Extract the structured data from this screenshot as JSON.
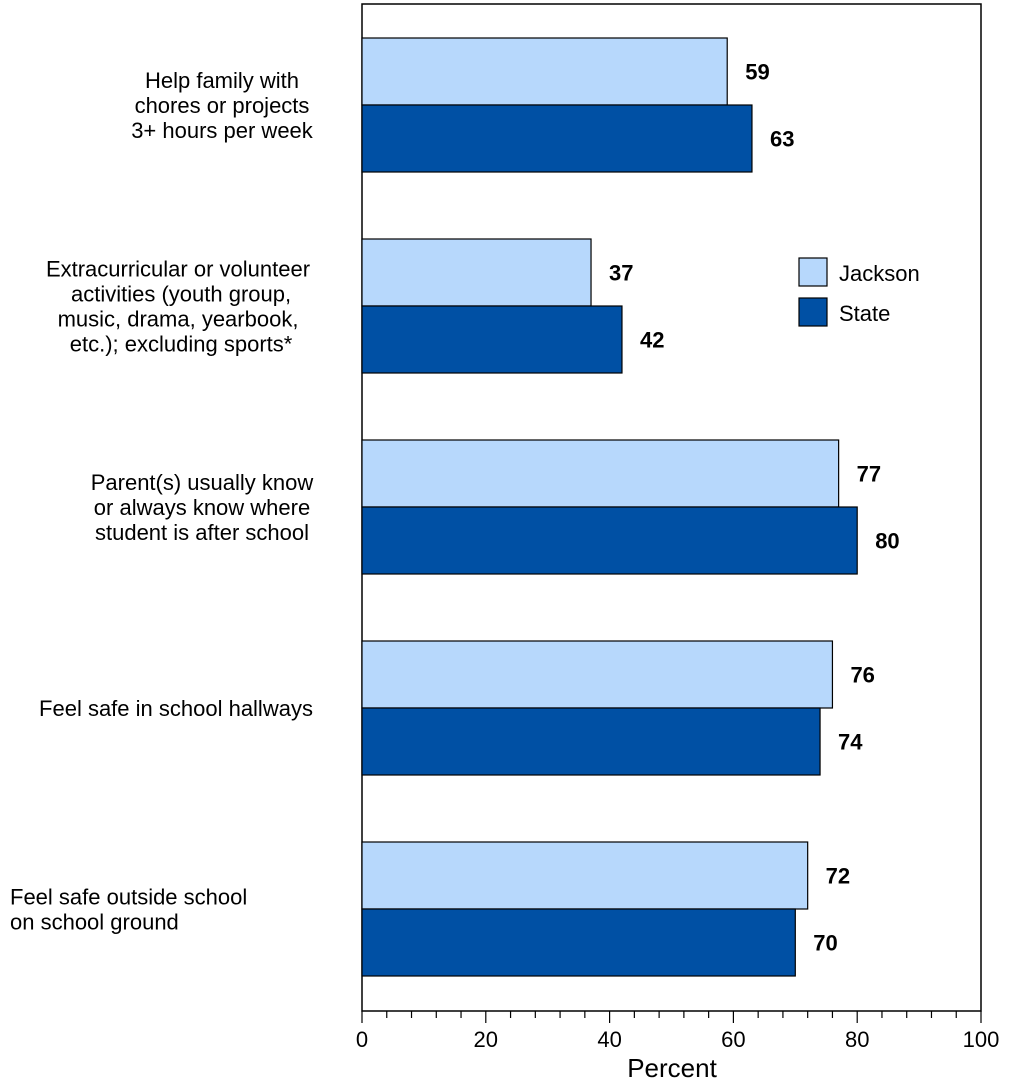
{
  "chart_data": {
    "type": "bar",
    "orientation": "horizontal",
    "categories": [
      [
        "Help family with",
        "chores or projects",
        "3+ hours per week"
      ],
      [
        "Extracurricular or volunteer",
        " activities (youth group,",
        "music, drama, yearbook,",
        " etc.); excluding sports*"
      ],
      [
        "Parent(s) usually know",
        "or always know where",
        "student  is after school"
      ],
      [
        "Feel safe in school hallways"
      ],
      [
        "Feel safe outside school",
        "on school ground"
      ]
    ],
    "series": [
      {
        "name": "Jackson",
        "values": [
          59,
          37,
          77,
          76,
          72
        ],
        "color": "#b7d8fc"
      },
      {
        "name": "State",
        "values": [
          63,
          42,
          80,
          74,
          70
        ],
        "color": "#0050a4"
      }
    ],
    "xlabel": "Percent",
    "xlim": [
      0,
      100
    ],
    "xticks": [
      "0",
      "20",
      "40",
      "60",
      "80",
      "100"
    ],
    "legend_position": "right",
    "grid": false
  }
}
